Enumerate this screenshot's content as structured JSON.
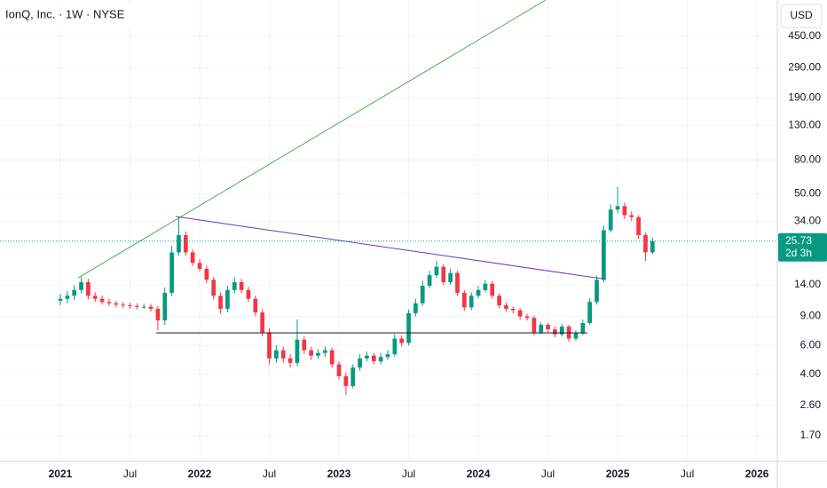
{
  "chart_data": {
    "type": "candlestick",
    "title": "IonQ, Inc. · 1W · NYSE",
    "currency": "USD",
    "log_scale": true,
    "grid": true,
    "up_color": "#089981",
    "down_color": "#f23645",
    "xlim": [
      2020.567,
      2026.146
    ],
    "ylim": [
      1.186,
      748
    ],
    "xticks": [
      2021,
      {
        "value": 2021.5,
        "label": "Jul"
      },
      2022,
      {
        "value": 2022.5,
        "label": "Jul"
      },
      2023,
      {
        "value": 2023.5,
        "label": "Jul"
      },
      2024,
      {
        "value": 2024.5,
        "label": "Jul"
      },
      2025,
      {
        "value": 2025.5,
        "label": "Jul"
      },
      2026
    ],
    "yticks": [
      {
        "value": 450,
        "label": "450.00"
      },
      {
        "value": 290,
        "label": "290.00"
      },
      {
        "value": 190,
        "label": "190.00"
      },
      {
        "value": 130,
        "label": "130.00"
      },
      {
        "value": 80,
        "label": "80.00"
      },
      {
        "value": 50,
        "label": "50.00"
      },
      {
        "value": 34,
        "label": "34.00"
      },
      {
        "value": 14,
        "label": "14.00"
      },
      {
        "value": 9,
        "label": "9.00"
      },
      {
        "value": 6,
        "label": "6.00"
      },
      {
        "value": 4,
        "label": "4.00"
      },
      {
        "value": 2.6,
        "label": "2.60"
      },
      {
        "value": 1.7,
        "label": "1.70"
      }
    ],
    "last_price": 25.73,
    "last_price_color": "#089981",
    "countdown": "2d 3h",
    "x": [
      2021.0,
      2021.05,
      2021.1,
      2021.15,
      2021.2,
      2021.25,
      2021.3,
      2021.35,
      2021.4,
      2021.45,
      2021.5,
      2021.55,
      2021.6,
      2021.65,
      2021.7,
      2021.75,
      2021.8,
      2021.85,
      2021.9,
      2021.95,
      2022.0,
      2022.05,
      2022.1,
      2022.15,
      2022.2,
      2022.25,
      2022.3,
      2022.35,
      2022.4,
      2022.45,
      2022.5,
      2022.55,
      2022.6,
      2022.65,
      2022.7,
      2022.75,
      2022.8,
      2022.85,
      2022.9,
      2022.95,
      2023.0,
      2023.05,
      2023.1,
      2023.15,
      2023.2,
      2023.25,
      2023.3,
      2023.35,
      2023.4,
      2023.45,
      2023.5,
      2023.55,
      2023.6,
      2023.65,
      2023.7,
      2023.75,
      2023.8,
      2023.85,
      2023.9,
      2023.95,
      2024.0,
      2024.05,
      2024.1,
      2024.15,
      2024.2,
      2024.25,
      2024.3,
      2024.35,
      2024.4,
      2024.45,
      2024.5,
      2024.55,
      2024.6,
      2024.65,
      2024.7,
      2024.75,
      2024.8,
      2024.85,
      2024.9,
      2024.95,
      2025.0,
      2025.05,
      2025.1,
      2025.15,
      2025.2,
      2025.25
    ],
    "open": [
      11.2,
      11.5,
      12.0,
      13.0,
      14.5,
      12.0,
      11.5,
      11.0,
      10.8,
      10.6,
      10.5,
      10.4,
      10.3,
      10.3,
      10.0,
      8.5,
      12.5,
      22.0,
      28.0,
      22.0,
      19.0,
      17.5,
      15.0,
      12.0,
      10.0,
      13.0,
      14.5,
      13.0,
      11.5,
      9.5,
      7.2,
      5.0,
      5.6,
      5.0,
      4.7,
      6.5,
      5.6,
      5.2,
      5.4,
      5.6,
      4.6,
      3.9,
      3.4,
      4.4,
      5.0,
      5.2,
      4.8,
      5.1,
      5.3,
      6.6,
      6.2,
      9.4,
      10.8,
      13.8,
      16.0,
      18.0,
      14.5,
      16.5,
      12.5,
      10.2,
      12.0,
      13.0,
      14.2,
      12.0,
      10.5,
      10.0,
      9.8,
      9.0,
      8.8,
      7.2,
      8.0,
      7.5,
      7.0,
      7.8,
      6.6,
      7.1,
      8.2,
      11.0,
      15.0,
      30.0,
      40.0,
      42.0,
      37.0,
      36.0,
      28.0,
      22.0
    ],
    "high": [
      12.3,
      12.8,
      13.9,
      15.6,
      15.2,
      12.6,
      12.0,
      11.5,
      11.2,
      11.0,
      10.9,
      10.8,
      10.7,
      10.7,
      10.4,
      13.5,
      24.0,
      36.0,
      29.5,
      23.0,
      20.0,
      18.3,
      15.6,
      12.6,
      13.8,
      15.5,
      15.2,
      13.6,
      12.0,
      10.0,
      7.6,
      6.0,
      5.9,
      5.3,
      8.6,
      6.8,
      5.9,
      5.7,
      5.9,
      5.8,
      4.8,
      4.1,
      4.6,
      5.3,
      5.5,
      5.4,
      5.4,
      5.6,
      7.0,
      6.9,
      9.9,
      11.5,
      14.8,
      17.0,
      19.5,
      18.6,
      17.5,
      17.0,
      13.0,
      12.6,
      13.8,
      15.0,
      14.7,
      12.4,
      10.9,
      10.3,
      10.1,
      9.3,
      9.1,
      8.3,
      8.2,
      7.8,
      8.1,
      8.0,
      7.4,
      8.6,
      11.6,
      15.9,
      32.0,
      43.0,
      55.0,
      44.0,
      39.0,
      37.0,
      29.0,
      27.0
    ],
    "low": [
      10.5,
      10.8,
      11.3,
      12.4,
      11.4,
      11.0,
      10.6,
      10.4,
      10.2,
      10.1,
      10.0,
      9.9,
      10.0,
      9.6,
      7.4,
      8.0,
      12.0,
      21.0,
      21.0,
      18.2,
      16.8,
      14.3,
      11.4,
      9.3,
      9.5,
      12.5,
      12.4,
      11.0,
      9.0,
      6.8,
      4.6,
      4.7,
      4.7,
      4.4,
      4.5,
      5.3,
      4.9,
      5.0,
      5.1,
      4.4,
      3.7,
      3.0,
      3.3,
      4.2,
      4.8,
      4.6,
      4.6,
      4.9,
      5.1,
      5.9,
      6.0,
      9.0,
      10.4,
      13.3,
      15.4,
      13.9,
      14.0,
      12.0,
      9.7,
      9.8,
      11.6,
      12.6,
      11.5,
      10.1,
      9.6,
      9.4,
      8.6,
      8.5,
      6.9,
      7.0,
      7.2,
      6.7,
      6.8,
      6.3,
      6.4,
      6.9,
      8.0,
      10.6,
      14.5,
      29.0,
      38.0,
      35.0,
      34.0,
      26.5,
      19.5,
      21.5
    ],
    "close": [
      11.5,
      12.0,
      13.0,
      14.5,
      12.0,
      11.5,
      11.0,
      10.8,
      10.6,
      10.5,
      10.4,
      10.3,
      10.3,
      10.0,
      8.5,
      12.5,
      22.0,
      28.0,
      22.0,
      19.0,
      17.5,
      15.0,
      12.0,
      10.0,
      13.0,
      14.5,
      13.0,
      11.5,
      9.5,
      7.2,
      5.0,
      5.6,
      5.0,
      4.7,
      6.5,
      5.6,
      5.2,
      5.4,
      5.6,
      4.6,
      3.9,
      3.4,
      4.4,
      5.0,
      5.2,
      4.8,
      5.1,
      5.3,
      6.6,
      6.2,
      9.4,
      10.8,
      13.8,
      16.0,
      18.0,
      14.5,
      16.5,
      12.5,
      10.2,
      12.0,
      13.0,
      14.2,
      12.0,
      10.5,
      10.0,
      9.8,
      9.0,
      8.8,
      7.2,
      8.0,
      7.5,
      7.0,
      7.8,
      6.6,
      7.1,
      8.2,
      11.0,
      15.0,
      30.0,
      40.0,
      42.0,
      37.0,
      36.0,
      28.0,
      22.0,
      25.73
    ],
    "trendlines": [
      {
        "color": "#4caf50",
        "points": [
          [
            2021.127,
            15.4
          ],
          [
            2024.484,
            748
          ]
        ]
      },
      {
        "color": "#673ab7",
        "points": [
          [
            2021.828,
            36.3
          ],
          [
            2024.917,
            15.1
          ]
        ]
      },
      {
        "color": "#131722",
        "points": [
          [
            2021.688,
            7.15
          ],
          [
            2024.783,
            7.15
          ]
        ]
      }
    ]
  }
}
